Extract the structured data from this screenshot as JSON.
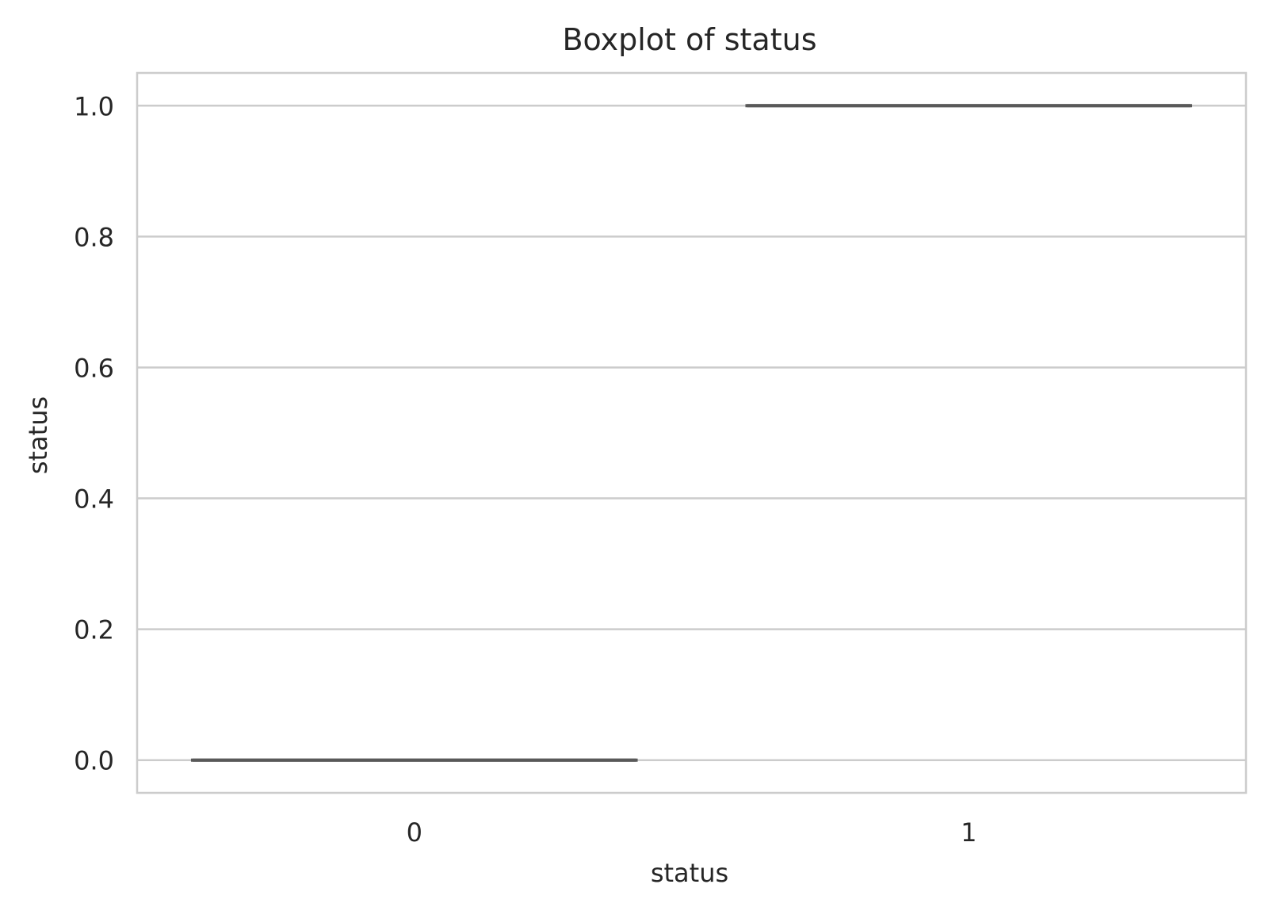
{
  "chart_data": {
    "type": "box",
    "title": "Boxplot of status",
    "xlabel": "status",
    "ylabel": "status",
    "categories": [
      "0",
      "1"
    ],
    "boxes": [
      {
        "category": "0",
        "min": 0,
        "q1": 0,
        "median": 0,
        "q3": 0,
        "max": 0
      },
      {
        "category": "1",
        "min": 1,
        "q1": 1,
        "median": 1,
        "q3": 1,
        "max": 1
      }
    ],
    "ylim": [
      -0.05,
      1.05
    ],
    "yticks": [
      0.0,
      0.2,
      0.4,
      0.6,
      0.8,
      1.0
    ],
    "ytick_labels": [
      "0.0",
      "0.2",
      "0.4",
      "0.6",
      "0.8",
      "1.0"
    ],
    "grid": true,
    "colors": {
      "box_line": "#595959",
      "grid": "#cccccc",
      "spine": "#cccccc",
      "text": "#262626"
    }
  }
}
